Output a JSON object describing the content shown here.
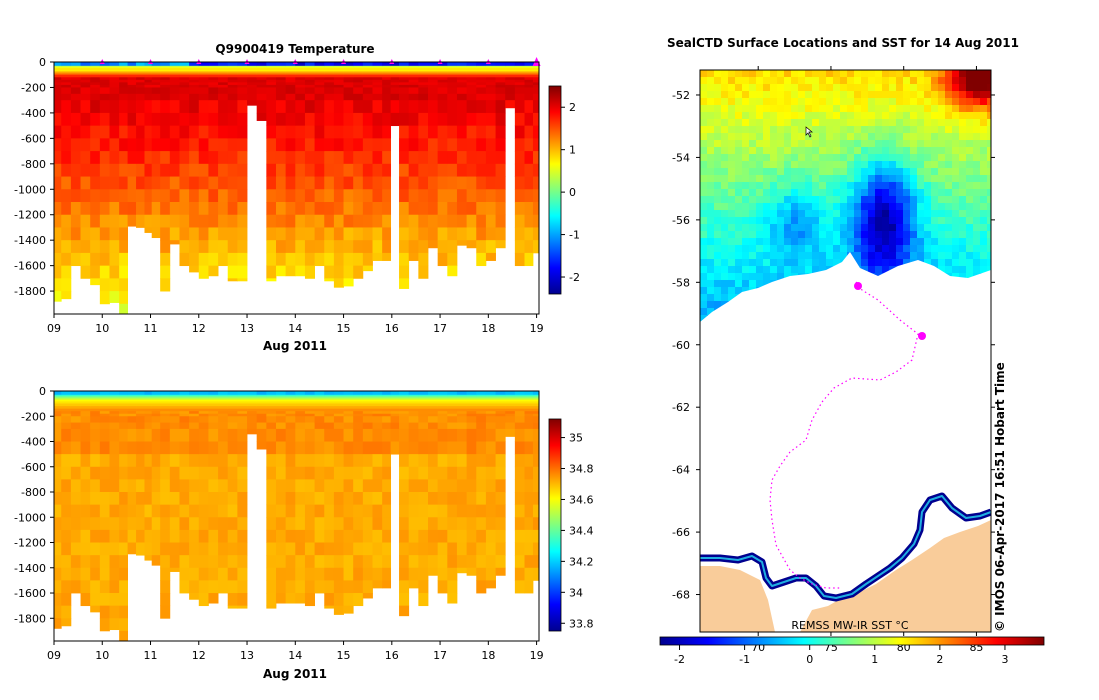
{
  "chart_data": [
    {
      "type": "heatmap",
      "title": "Q9900419  Temperature",
      "xlabel": "Aug 2011",
      "ylabel": "",
      "x_ticks": [
        "09",
        "10",
        "11",
        "12",
        "13",
        "14",
        "15",
        "16",
        "17",
        "18",
        "19"
      ],
      "xlim": [
        9,
        19.05
      ],
      "ylim": [
        -1980,
        0
      ],
      "y_ticks": [
        0,
        -200,
        -400,
        -600,
        -800,
        -1000,
        -1200,
        -1400,
        -1600,
        -1800
      ],
      "colorbar": {
        "min": -2.4,
        "max": 2.5,
        "ticks": [
          2,
          1,
          0,
          -1,
          -2
        ]
      },
      "profile_markers_day": [
        10,
        11,
        12,
        13,
        14,
        15,
        16,
        17,
        18,
        19
      ],
      "profiles": [
        {
          "day": 9.05,
          "max_depth": 1880
        },
        {
          "day": 9.25,
          "max_depth": 1860
        },
        {
          "day": 9.45,
          "max_depth": 1600
        },
        {
          "day": 9.65,
          "max_depth": 1700
        },
        {
          "day": 9.85,
          "max_depth": 1750
        },
        {
          "day": 10.05,
          "max_depth": 1900
        },
        {
          "day": 10.25,
          "max_depth": 1890
        },
        {
          "day": 10.45,
          "max_depth": 1980
        },
        {
          "day": 10.6,
          "max_depth": 1290
        },
        {
          "day": 10.8,
          "max_depth": 1300
        },
        {
          "day": 10.95,
          "max_depth": 1340
        },
        {
          "day": 11.1,
          "max_depth": 1380
        },
        {
          "day": 11.3,
          "max_depth": 1800
        },
        {
          "day": 11.5,
          "max_depth": 1430
        },
        {
          "day": 11.7,
          "max_depth": 1600
        },
        {
          "day": 11.9,
          "max_depth": 1650
        },
        {
          "day": 12.1,
          "max_depth": 1700
        },
        {
          "day": 12.3,
          "max_depth": 1680
        },
        {
          "day": 12.5,
          "max_depth": 1600
        },
        {
          "day": 12.7,
          "max_depth": 1720
        },
        {
          "day": 12.9,
          "max_depth": 1720
        },
        {
          "day": 13.1,
          "max_depth": 340
        },
        {
          "day": 13.3,
          "max_depth": 460
        },
        {
          "day": 13.5,
          "max_depth": 1720
        },
        {
          "day": 13.7,
          "max_depth": 1680
        },
        {
          "day": 13.9,
          "max_depth": 1680
        },
        {
          "day": 14.1,
          "max_depth": 1680
        },
        {
          "day": 14.3,
          "max_depth": 1700
        },
        {
          "day": 14.5,
          "max_depth": 1600
        },
        {
          "day": 14.7,
          "max_depth": 1720
        },
        {
          "day": 14.9,
          "max_depth": 1770
        },
        {
          "day": 15.1,
          "max_depth": 1760
        },
        {
          "day": 15.3,
          "max_depth": 1700
        },
        {
          "day": 15.5,
          "max_depth": 1640
        },
        {
          "day": 15.7,
          "max_depth": 1560
        },
        {
          "day": 15.9,
          "max_depth": 1560
        },
        {
          "day": 16.05,
          "max_depth": 500
        },
        {
          "day": 16.25,
          "max_depth": 1780
        },
        {
          "day": 16.45,
          "max_depth": 1560
        },
        {
          "day": 16.65,
          "max_depth": 1700
        },
        {
          "day": 16.85,
          "max_depth": 1460
        },
        {
          "day": 17.05,
          "max_depth": 1600
        },
        {
          "day": 17.25,
          "max_depth": 1680
        },
        {
          "day": 17.45,
          "max_depth": 1440
        },
        {
          "day": 17.65,
          "max_depth": 1460
        },
        {
          "day": 17.85,
          "max_depth": 1600
        },
        {
          "day": 18.05,
          "max_depth": 1560
        },
        {
          "day": 18.25,
          "max_depth": 1460
        },
        {
          "day": 18.45,
          "max_depth": 360
        },
        {
          "day": 18.65,
          "max_depth": 1600
        },
        {
          "day": 18.85,
          "max_depth": 1600
        },
        {
          "day": 19.0,
          "max_depth": 1500
        }
      ]
    },
    {
      "type": "heatmap",
      "title": "",
      "xlabel": "Aug 2011",
      "ylabel": "",
      "x_ticks": [
        "09",
        "10",
        "11",
        "12",
        "13",
        "14",
        "15",
        "16",
        "17",
        "18",
        "19"
      ],
      "xlim": [
        9,
        19.05
      ],
      "ylim": [
        -1980,
        0
      ],
      "y_ticks": [
        0,
        -200,
        -400,
        -600,
        -800,
        -1000,
        -1200,
        -1400,
        -1600,
        -1800
      ],
      "colorbar": {
        "min": 33.75,
        "max": 35.12,
        "ticks": [
          35,
          34.8,
          34.6,
          34.4,
          34.2,
          34,
          33.8
        ]
      }
    },
    {
      "type": "heatmap",
      "title": "SealCTD Surface Locations and SST for 14 Aug 2011",
      "xlabel": "",
      "ylabel": "",
      "lat_ticks": [
        -52,
        -54,
        -56,
        -58,
        -60,
        -62,
        -64,
        -66,
        -68
      ],
      "lat_range": [
        -51.2,
        -69.2
      ],
      "lon_ticks": [
        70,
        75,
        80,
        85
      ],
      "lon_range": [
        66,
        86
      ],
      "colorbar": {
        "min": -2.3,
        "max": 3.6,
        "ticks": [
          -2,
          -1,
          0,
          1,
          2,
          3
        ]
      },
      "product_label": "REMSS MW-IR SST °C",
      "credit": "© IMOS 06-Apr-2017 16:51 Hobart Time",
      "palette": {
        "land": "#f9cc9a",
        "ice": "#ffffff",
        "track": "#ff00ff",
        "low_sst": "#00008f",
        "high_sst": "#8f0000"
      }
    }
  ]
}
